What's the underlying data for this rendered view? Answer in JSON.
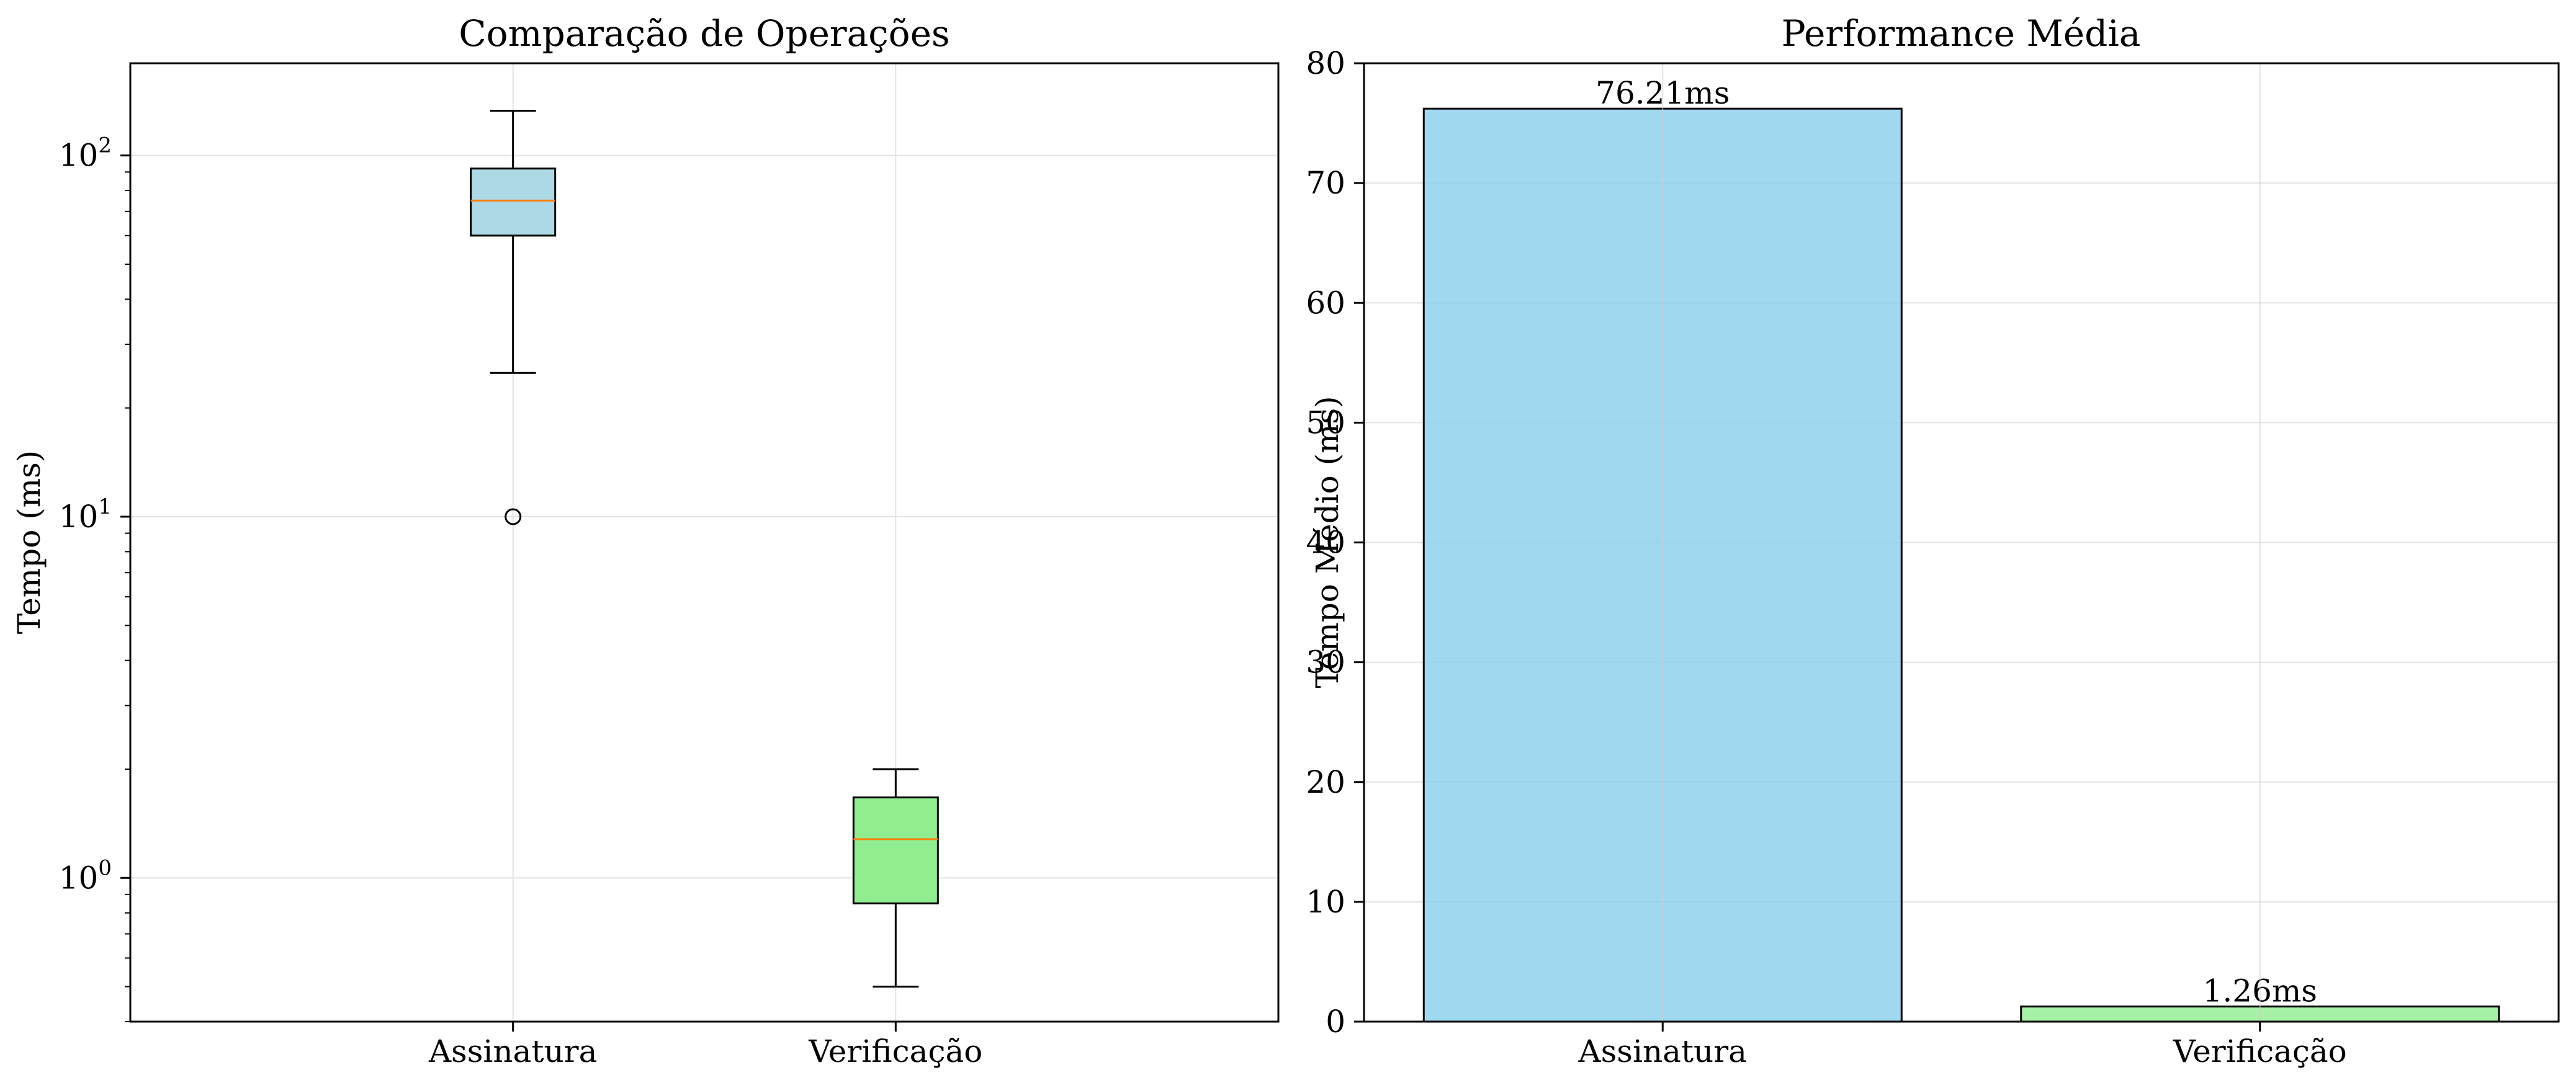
{
  "chart_data": [
    {
      "type": "box",
      "title": "Comparação de Operações",
      "xlabel": "",
      "ylabel": "Tempo (ms)",
      "yscale": "log",
      "ylim": [
        0.4,
        180
      ],
      "y_ticks": [
        {
          "base": "10",
          "exp": "0",
          "value": 1
        },
        {
          "base": "10",
          "exp": "1",
          "value": 10
        },
        {
          "base": "10",
          "exp": "2",
          "value": 100
        }
      ],
      "grid": true,
      "categories": [
        "Assinatura",
        "Verificação"
      ],
      "boxes": [
        {
          "name": "Assinatura",
          "whisker_low": 25,
          "q1": 60,
          "median": 75,
          "q3": 92,
          "whisker_high": 133,
          "outliers": [
            10
          ],
          "color": "#add8e6"
        },
        {
          "name": "Verificação",
          "whisker_low": 0.5,
          "q1": 0.85,
          "median": 1.28,
          "q3": 1.67,
          "whisker_high": 2.0,
          "outliers": [],
          "color": "#90ee90"
        }
      ],
      "median_color": "#ff7f0e"
    },
    {
      "type": "bar",
      "title": "Performance Média",
      "xlabel": "",
      "ylabel": "Tempo Médio (ms)",
      "ylim": [
        0,
        80
      ],
      "yticks": [
        0,
        10,
        20,
        30,
        40,
        50,
        60,
        70,
        80
      ],
      "grid": true,
      "categories": [
        "Assinatura",
        "Verificação"
      ],
      "values": [
        76.21,
        1.26
      ],
      "data_labels": [
        "76.21ms",
        "1.26ms"
      ],
      "colors": [
        "#87ceeb",
        "#90ee90"
      ]
    }
  ]
}
